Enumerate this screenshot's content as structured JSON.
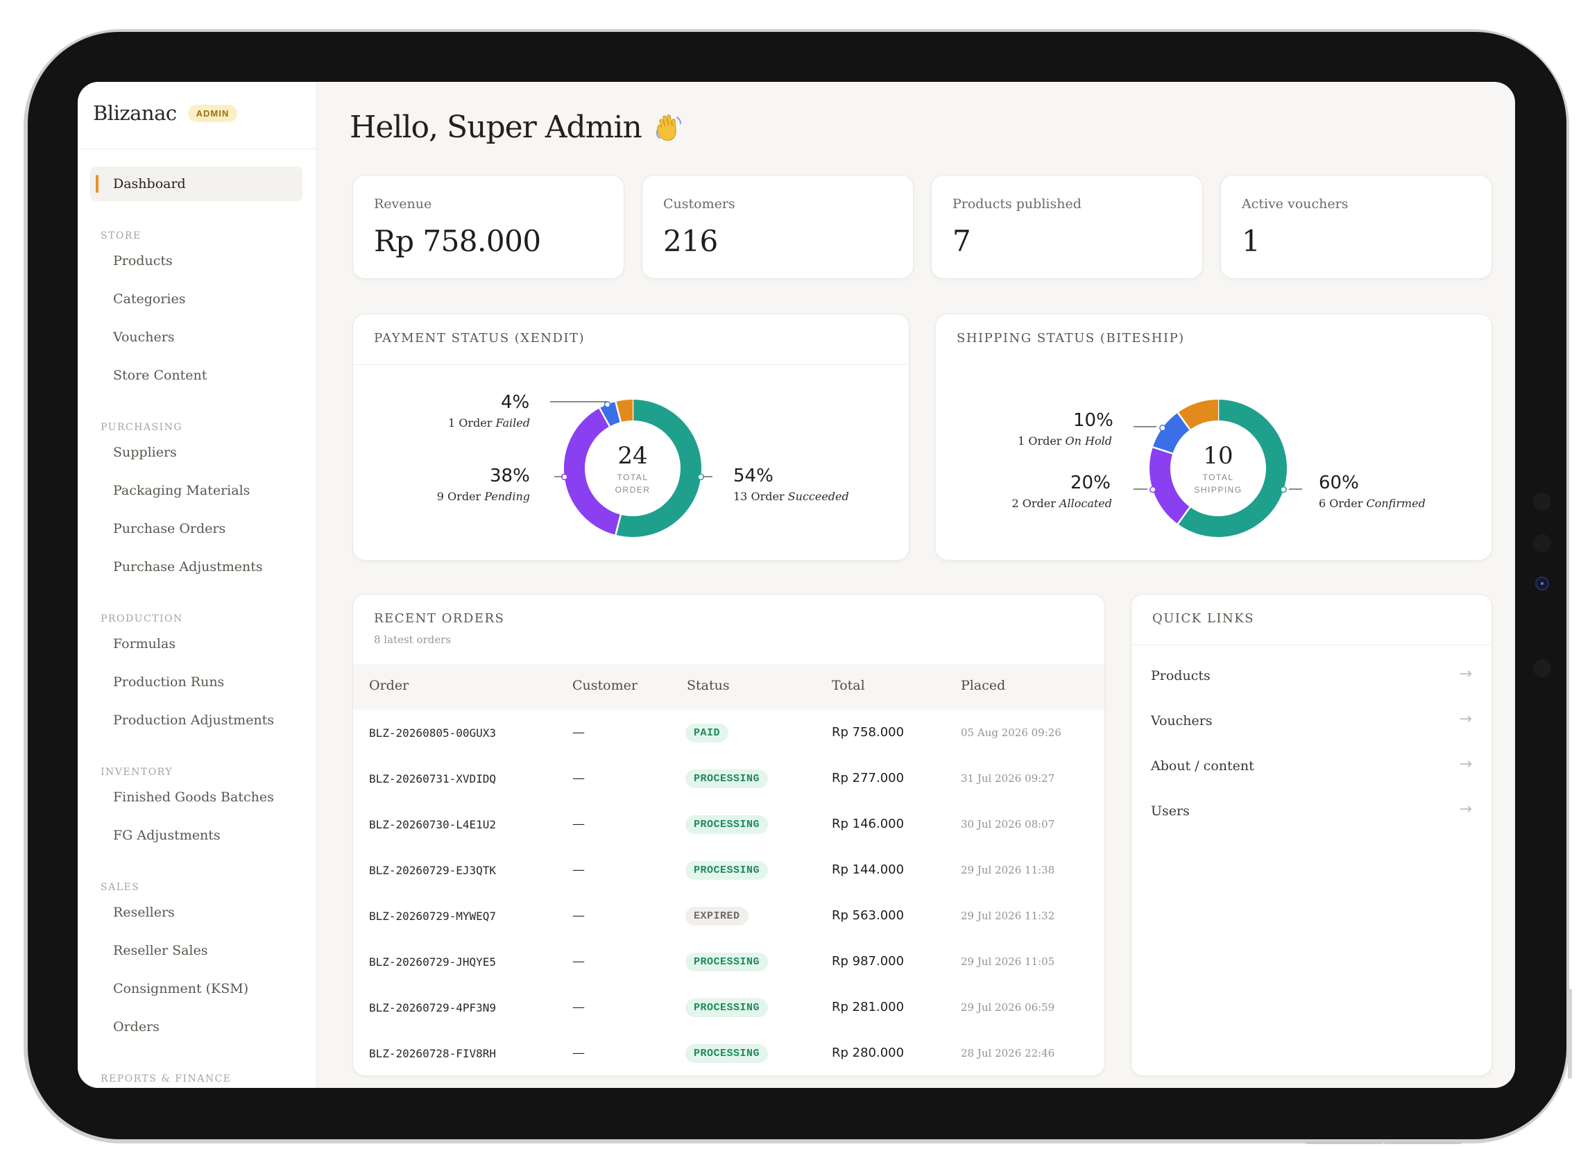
{
  "brand": {
    "name": "Blizanac",
    "badge": "ADMIN"
  },
  "sidebar": {
    "active": "Dashboard",
    "sections": [
      {
        "title": "STORE",
        "items": [
          "Products",
          "Categories",
          "Vouchers",
          "Store Content"
        ]
      },
      {
        "title": "PURCHASING",
        "items": [
          "Suppliers",
          "Packaging Materials",
          "Purchase Orders",
          "Purchase Adjustments"
        ]
      },
      {
        "title": "PRODUCTION",
        "items": [
          "Formulas",
          "Production Runs",
          "Production Adjustments"
        ]
      },
      {
        "title": "INVENTORY",
        "items": [
          "Finished Goods Batches",
          "FG Adjustments"
        ]
      },
      {
        "title": "SALES",
        "items": [
          "Resellers",
          "Reseller Sales",
          "Consignment (KSM)",
          "Orders"
        ]
      },
      {
        "title": "REPORTS & FINANCE",
        "items": []
      }
    ]
  },
  "greeting": "Hello, Super Admin",
  "stats": [
    {
      "label": "Revenue",
      "value": "Rp 758.000"
    },
    {
      "label": "Customers",
      "value": "216"
    },
    {
      "label": "Products published",
      "value": "7"
    },
    {
      "label": "Active vouchers",
      "value": "1"
    }
  ],
  "payment": {
    "title": "PAYMENT STATUS (XENDIT)",
    "total": "24",
    "total_label_1": "TOTAL",
    "total_label_2": "ORDER",
    "segments": [
      {
        "pct": "4%",
        "count": "1 Order",
        "status": "Failed",
        "fraction": 0.04,
        "color": "#3b6fe8"
      },
      {
        "pct": "38%",
        "count": "9 Order",
        "status": "Pending",
        "fraction": 0.38,
        "color": "#8a3ff0"
      },
      {
        "pct": "54%",
        "count": "13 Order",
        "status": "Succeeded",
        "fraction": 0.54,
        "color": "#1fa08c"
      },
      {
        "pct": "",
        "count": "",
        "status": "",
        "fraction": 0.04,
        "color": "#e38a1c"
      }
    ]
  },
  "shipping": {
    "title": "SHIPPING STATUS (BITESHIP)",
    "total": "10",
    "total_label_1": "TOTAL",
    "total_label_2": "SHIPPING",
    "segments": [
      {
        "pct": "10%",
        "count": "1 Order",
        "status": "On Hold",
        "fraction": 0.1,
        "color": "#3b6fe8"
      },
      {
        "pct": "20%",
        "count": "2 Order",
        "status": "Allocated",
        "fraction": 0.2,
        "color": "#8a3ff0"
      },
      {
        "pct": "60%",
        "count": "6 Order",
        "status": "Confirmed",
        "fraction": 0.6,
        "color": "#1fa08c"
      },
      {
        "pct": "",
        "count": "",
        "status": "",
        "fraction": 0.1,
        "color": "#e38a1c"
      }
    ]
  },
  "recent_orders": {
    "title": "RECENT ORDERS",
    "subtitle": "8 latest orders",
    "columns": [
      "Order",
      "Customer",
      "Status",
      "Total",
      "Placed"
    ],
    "rows": [
      {
        "order": "BLZ-20260805-00GUX3",
        "customer": "—",
        "status": "PAID",
        "total": "Rp 758.000",
        "placed": "05 Aug 2026 09:26"
      },
      {
        "order": "BLZ-20260731-XVDIDQ",
        "customer": "—",
        "status": "PROCESSING",
        "total": "Rp 277.000",
        "placed": "31 Jul 2026 09:27"
      },
      {
        "order": "BLZ-20260730-L4E1U2",
        "customer": "—",
        "status": "PROCESSING",
        "total": "Rp 146.000",
        "placed": "30 Jul 2026 08:07"
      },
      {
        "order": "BLZ-20260729-EJ3QTK",
        "customer": "—",
        "status": "PROCESSING",
        "total": "Rp 144.000",
        "placed": "29 Jul 2026 11:38"
      },
      {
        "order": "BLZ-20260729-MYWEQ7",
        "customer": "—",
        "status": "EXPIRED",
        "total": "Rp 563.000",
        "placed": "29 Jul 2026 11:32"
      },
      {
        "order": "BLZ-20260729-JHQYE5",
        "customer": "—",
        "status": "PROCESSING",
        "total": "Rp 987.000",
        "placed": "29 Jul 2026 11:05"
      },
      {
        "order": "BLZ-20260729-4PF3N9",
        "customer": "—",
        "status": "PROCESSING",
        "total": "Rp 281.000",
        "placed": "29 Jul 2026 06:59"
      },
      {
        "order": "BLZ-20260728-FIV8RH",
        "customer": "—",
        "status": "PROCESSING",
        "total": "Rp 280.000",
        "placed": "28 Jul 2026 22:46"
      }
    ]
  },
  "quick_links": {
    "title": "QUICK LINKS",
    "items": [
      {
        "label": "Products",
        "arrow": "→"
      },
      {
        "label": "Vouchers",
        "arrow": "→"
      },
      {
        "label": "About / content",
        "arrow": "→"
      },
      {
        "label": "Users",
        "arrow": "→"
      }
    ]
  }
}
